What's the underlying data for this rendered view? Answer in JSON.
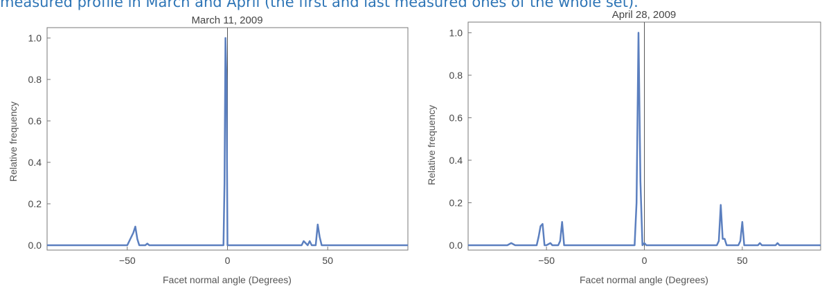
{
  "caption": "measured profile in March and April (the first and last measured ones of the whole set).",
  "chart_data": [
    {
      "type": "line",
      "title": "March 11, 2009",
      "xlabel": "Facet normal angle (Degrees)",
      "ylabel": "Relative frequency",
      "xlim": [
        -90,
        90
      ],
      "ylim": [
        0,
        1.05
      ],
      "xticks": [
        -50,
        0,
        50
      ],
      "xtick_labels": [
        "−50",
        "0",
        "50"
      ],
      "yticks": [
        0.0,
        0.2,
        0.4,
        0.6,
        0.8,
        1.0
      ],
      "ytick_labels": [
        "0.0",
        "0.2",
        "0.4",
        "0.6",
        "0.8",
        "1.0"
      ],
      "grid": false,
      "series": [
        {
          "color": "#5b7fbf",
          "x": [
            -90,
            -50,
            -48,
            -47,
            -46,
            -45,
            -44,
            -43,
            -41,
            -40,
            -39,
            -37,
            -2,
            -1.5,
            -1,
            -0.5,
            0,
            0.5,
            1,
            37,
            38,
            39,
            40,
            41,
            42,
            43,
            44,
            45,
            46,
            47,
            48,
            90
          ],
          "y": [
            0.0,
            0.0,
            0.04,
            0.06,
            0.09,
            0.03,
            0.0,
            0.0,
            0.0,
            0.008,
            0.0,
            0.0,
            0.0,
            0.3,
            1.0,
            0.8,
            0.0,
            0.0,
            0.0,
            0.0,
            0.02,
            0.01,
            0.0,
            0.02,
            0.0,
            0.0,
            0.0,
            0.1,
            0.04,
            0.0,
            0.0,
            0.0
          ]
        }
      ]
    },
    {
      "type": "line",
      "title": "April 28, 2009",
      "xlabel": "Facet normal angle (Degrees)",
      "ylabel": "Relative frequency",
      "xlim": [
        -90,
        90
      ],
      "ylim": [
        0,
        1.05
      ],
      "xticks": [
        -50,
        0,
        50
      ],
      "xtick_labels": [
        "−50",
        "0",
        "50"
      ],
      "yticks": [
        0.0,
        0.2,
        0.4,
        0.6,
        0.8,
        1.0
      ],
      "ytick_labels": [
        "0.0",
        "0.2",
        "0.4",
        "0.6",
        "0.8",
        "1.0"
      ],
      "grid": false,
      "series": [
        {
          "color": "#5b7fbf",
          "x": [
            -90,
            -70,
            -68,
            -66,
            -55,
            -54,
            -53,
            -52,
            -51,
            -50,
            -48,
            -47,
            -46,
            -44,
            -43,
            -42,
            -41,
            -40,
            -5,
            -4,
            -3,
            -2,
            -1,
            0,
            1,
            37,
            38,
            39,
            40,
            41,
            42,
            43,
            48,
            49,
            50,
            51,
            52,
            58,
            59,
            60,
            67,
            68,
            69,
            70,
            90
          ],
          "y": [
            0.0,
            0.0,
            0.01,
            0.0,
            0.0,
            0.04,
            0.09,
            0.1,
            0.0,
            0.0,
            0.01,
            0.0,
            0.0,
            0.0,
            0.02,
            0.11,
            0.0,
            0.0,
            0.0,
            0.2,
            1.0,
            0.3,
            0.0,
            0.01,
            0.0,
            0.0,
            0.02,
            0.19,
            0.03,
            0.03,
            0.0,
            0.0,
            0.0,
            0.02,
            0.11,
            0.0,
            0.0,
            0.0,
            0.01,
            0.0,
            0.0,
            0.01,
            0.0,
            0.0,
            0.0
          ]
        }
      ]
    }
  ]
}
